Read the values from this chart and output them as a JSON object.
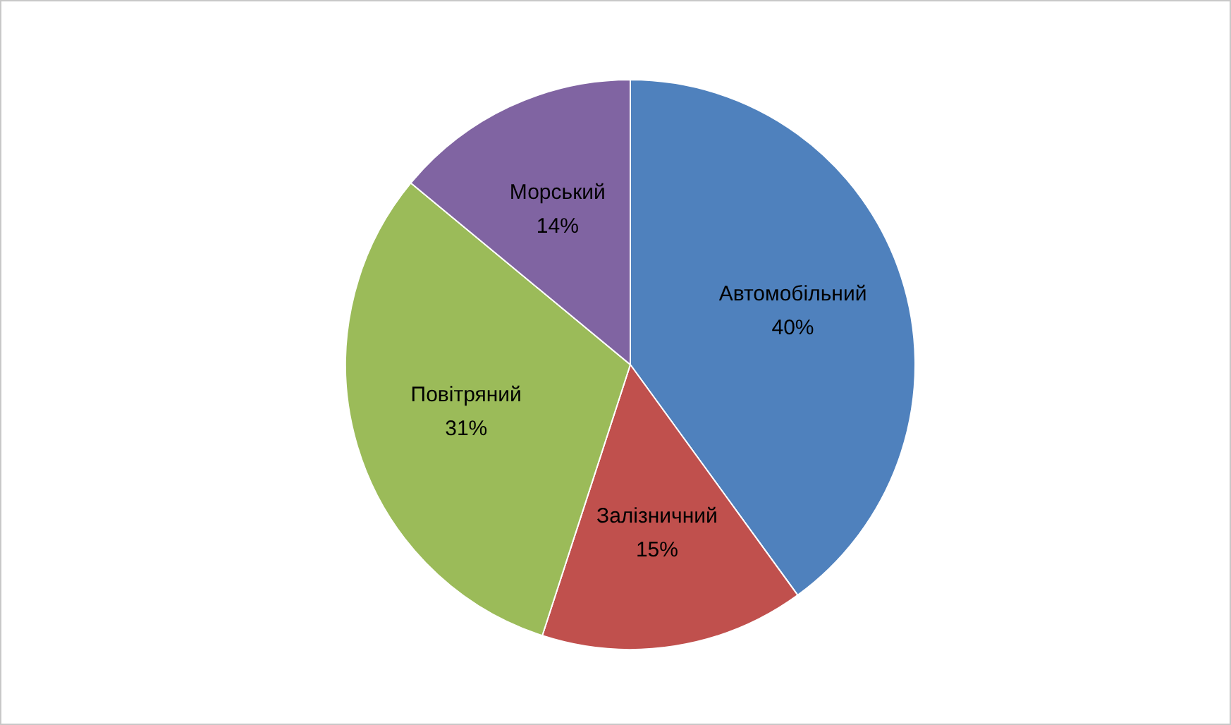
{
  "chart_data": {
    "type": "pie",
    "categories": [
      "Автомобільний",
      "Залізничний",
      "Повітряний",
      "Морський"
    ],
    "values": [
      40,
      15,
      31,
      14
    ],
    "value_labels": [
      "40%",
      "15%",
      "31%",
      "14%"
    ],
    "colors": [
      "#4f81bd",
      "#c0504d",
      "#9bbb59",
      "#8064a2"
    ],
    "legend": false
  }
}
